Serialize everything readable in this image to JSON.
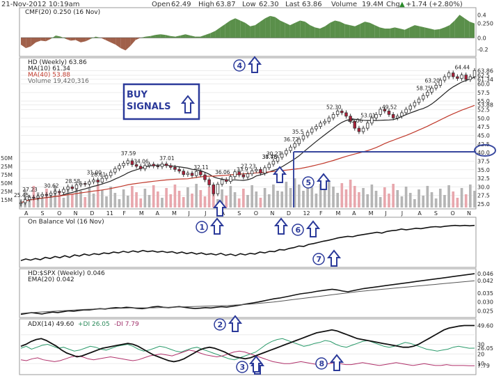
{
  "header": {
    "date": "21-Nov-2012 10:19am",
    "open_label": "Open",
    "open": "62.49",
    "high_label": "High",
    "high": "63.87",
    "low_label": "Low",
    "low": "62.30",
    "last_label": "Last",
    "last": "63.86",
    "volume_label": "Volume",
    "volume": "19.4M",
    "chg_label": "Chg",
    "chg": "+1.74 (+2.80%)",
    "chg_arrow": "▲"
  },
  "colors": {
    "up": "#ffffff",
    "down": "#b0203a",
    "ma10": "#222222",
    "ma40": "#c0392b",
    "cmf_pos": "#5a8f4a",
    "cmf_neg": "#a0604a",
    "annotation": "#2b3a9a",
    "volume_up": "#b5b5b5",
    "volume_down": "#e8a7ad"
  },
  "annotation": {
    "title_line1": "BUY",
    "title_line2": "SIGNALS",
    "markers": [
      "1",
      "2",
      "3",
      "4",
      "5",
      "6",
      "7",
      "8"
    ]
  },
  "x_axis_labels": [
    "A",
    "S",
    "O",
    "N",
    "D",
    "11",
    "F",
    "M",
    "A",
    "M",
    "J",
    "J",
    "A",
    "S",
    "O",
    "N",
    "D",
    "12",
    "F",
    "M",
    "A",
    "M",
    "J",
    "J",
    "A",
    "S",
    "O",
    "N"
  ],
  "chart_data": [
    {
      "panel": "cmf",
      "type": "area",
      "title": "CMF(20) 0.250 (16 Nov)",
      "ylim": [
        -0.3,
        0.5
      ],
      "y_ticks": [
        "0.4",
        "0.250",
        "0.0",
        "-0.2"
      ],
      "values": [
        -0.12,
        -0.18,
        -0.15,
        -0.08,
        -0.05,
        -0.06,
        -0.02,
        0.04,
        0.02,
        -0.02,
        -0.05,
        -0.04,
        -0.08,
        -0.06,
        -0.02,
        0.02,
        0.0,
        -0.04,
        -0.08,
        -0.12,
        -0.18,
        -0.22,
        -0.14,
        -0.04,
        0.0,
        0.02,
        0.03,
        0.05,
        0.06,
        0.05,
        0.03,
        0.02,
        0.04,
        0.06,
        0.04,
        0.02,
        0.02,
        0.05,
        0.08,
        0.12,
        0.18,
        0.24,
        0.3,
        0.34,
        0.3,
        0.26,
        0.2,
        0.22,
        0.28,
        0.34,
        0.38,
        0.36,
        0.3,
        0.26,
        0.22,
        0.26,
        0.3,
        0.28,
        0.22,
        0.18,
        0.16,
        0.2,
        0.26,
        0.3,
        0.28,
        0.24,
        0.22,
        0.2,
        0.24,
        0.28,
        0.26,
        0.22,
        0.18,
        0.16,
        0.16,
        0.18,
        0.16,
        0.14,
        0.18,
        0.22,
        0.2,
        0.18,
        0.16,
        0.14,
        0.15,
        0.18,
        0.22,
        0.3,
        0.4,
        0.34,
        0.28,
        0.25
      ]
    },
    {
      "panel": "price",
      "type": "candlestick",
      "title": "HD (Weekly) 63.86",
      "legend": [
        "MA(10) 61.34",
        "MA(40) 53.88",
        "Volume 19,420,316"
      ],
      "ylim": [
        24,
        67
      ],
      "y_ticks": [
        "63.86",
        "62.5",
        "61.34",
        "60.0",
        "57.5",
        "55.0",
        "53.88",
        "52.5",
        "50.0",
        "47.5",
        "45.0",
        "42.5",
        "40.0",
        "37.5",
        "35.0",
        "32.5",
        "30.0",
        "27.5",
        "25.0"
      ],
      "volume_ticks": [
        "50M",
        "25M",
        "75M",
        "50M",
        "25M",
        "15M"
      ],
      "close": [
        25.4,
        26.3,
        27.0,
        26.8,
        27.3,
        27.8,
        27.6,
        28.2,
        28.7,
        28.4,
        29.3,
        30.0,
        29.5,
        30.6,
        31.0,
        30.8,
        31.5,
        32.0,
        31.4,
        32.5,
        33.3,
        34.3,
        35.3,
        36.2,
        36.9,
        37.6,
        36.5,
        36.0,
        35.3,
        36.2,
        36.6,
        36.1,
        35.9,
        36.7,
        36.2,
        35.7,
        35.1,
        34.6,
        33.6,
        34.0,
        33.3,
        34.5,
        33.5,
        32.1,
        30.6,
        28.0,
        30.8,
        32.1,
        31.6,
        33.0,
        34.4,
        33.5,
        32.9,
        33.8,
        34.7,
        35.1,
        34.0,
        35.6,
        36.6,
        37.5,
        38.6,
        39.6,
        40.6,
        41.6,
        42.6,
        43.9,
        44.9,
        45.9,
        46.9,
        47.6,
        48.6,
        49.1,
        50.1,
        51.1,
        52.1,
        51.6,
        50.6,
        49.1,
        47.1,
        46.1,
        47.1,
        48.6,
        50.1,
        51.1,
        52.6,
        52.1,
        51.1,
        50.1,
        50.6,
        51.6,
        52.6,
        53.6,
        54.6,
        55.6,
        56.6,
        57.6,
        58.8,
        59.6,
        61.1,
        62.1,
        63.2,
        62.1,
        61.6,
        62.6,
        61.3,
        62.1,
        63.9
      ],
      "labels": [
        {
          "text": "25.45",
          "i": 0
        },
        {
          "text": "27.23",
          "i": 2
        },
        {
          "text": "30.62",
          "i": 7
        },
        {
          "text": "28.58",
          "i": 12
        },
        {
          "text": "28.61",
          "i": 18
        },
        {
          "text": "31.00",
          "i": 17
        },
        {
          "text": "37.59",
          "i": 25
        },
        {
          "text": "34.06",
          "i": 28
        },
        {
          "text": "37.01",
          "i": 34
        },
        {
          "text": "32.11",
          "i": 42
        },
        {
          "text": "36.06",
          "i": 47
        },
        {
          "text": "33.9",
          "i": 52
        },
        {
          "text": "27.23",
          "i": 53
        },
        {
          "text": "34.46",
          "i": 58
        },
        {
          "text": "30.27",
          "i": 59
        },
        {
          "text": "36.72",
          "i": 63
        },
        {
          "text": "35.5",
          "i": 65
        },
        {
          "text": "35.75",
          "i": 58
        },
        {
          "text": "52.30",
          "i": 73
        },
        {
          "text": "53.01",
          "i": 81
        },
        {
          "text": "45.06",
          "i": 78
        },
        {
          "text": "49.52",
          "i": 86
        },
        {
          "text": "58.75",
          "i": 94
        },
        {
          "text": "63.20",
          "i": 96
        },
        {
          "text": "64.44",
          "i": 103
        }
      ],
      "target_level": "40.0"
    },
    {
      "panel": "obv",
      "type": "line",
      "title": "On Balance Vol (16 Nov)",
      "values": [
        10,
        14,
        11,
        15,
        12,
        18,
        15,
        20,
        17,
        22,
        18,
        24,
        21,
        26,
        23,
        27,
        25,
        29,
        27,
        31,
        29,
        33,
        30,
        34,
        31,
        35,
        32,
        34,
        31,
        33,
        30,
        32,
        28,
        31,
        27,
        30,
        26,
        29,
        25,
        27,
        24,
        28,
        23,
        26,
        22,
        27,
        24,
        28,
        26,
        31,
        29,
        33,
        32,
        37,
        36,
        40,
        42,
        46,
        45,
        50,
        52,
        55,
        58,
        60,
        63,
        66,
        68,
        70,
        69,
        72,
        74,
        76,
        78,
        80,
        78,
        82,
        84,
        85,
        88,
        86,
        88,
        90,
        89,
        91,
        93,
        94,
        93,
        95,
        96,
        97,
        96,
        97,
        96,
        97
      ]
    },
    {
      "panel": "relative",
      "type": "line",
      "title": "HD:$SPX (Weekly) 0.046",
      "legend": [
        "EMA(20) 0.042"
      ],
      "y_ticks": [
        "0.046",
        "0.042",
        "0.035",
        "0.030",
        "0.025"
      ],
      "values": [
        0.023,
        0.0235,
        0.024,
        0.0236,
        0.0232,
        0.0238,
        0.0243,
        0.024,
        0.0245,
        0.025,
        0.0248,
        0.0252,
        0.0256,
        0.0255,
        0.0259,
        0.0262,
        0.026,
        0.0265,
        0.0268,
        0.0266,
        0.027,
        0.0268,
        0.0264,
        0.0262,
        0.0266,
        0.0272,
        0.0275,
        0.027,
        0.0268,
        0.0271,
        0.0274,
        0.027,
        0.0266,
        0.0263,
        0.0265,
        0.0268,
        0.0266,
        0.027,
        0.0273,
        0.0271,
        0.0275,
        0.028,
        0.0285,
        0.029,
        0.0295,
        0.03,
        0.0306,
        0.0312,
        0.0318,
        0.0322,
        0.0328,
        0.0334,
        0.034,
        0.0346,
        0.035,
        0.0354,
        0.036,
        0.0364,
        0.0368,
        0.0372,
        0.0368,
        0.0362,
        0.0358,
        0.0364,
        0.037,
        0.0376,
        0.038,
        0.0384,
        0.0388,
        0.0392,
        0.0396,
        0.04,
        0.0404,
        0.0408,
        0.0412,
        0.0416,
        0.042,
        0.0424,
        0.0428,
        0.0432,
        0.0436,
        0.044,
        0.0444,
        0.0448,
        0.0452,
        0.0456,
        0.046
      ],
      "ema": [
        0.0235,
        0.0238,
        0.024,
        0.0242,
        0.0244,
        0.0246,
        0.0248,
        0.025,
        0.0252,
        0.0254,
        0.0256,
        0.0258,
        0.0259,
        0.026,
        0.0261,
        0.0262,
        0.0263,
        0.0264,
        0.0265,
        0.0266,
        0.0267,
        0.0267,
        0.0267,
        0.0267,
        0.0268,
        0.0269,
        0.027,
        0.0271,
        0.0272,
        0.0273,
        0.0274,
        0.0275,
        0.0276,
        0.0277,
        0.0278,
        0.0279,
        0.028,
        0.0282,
        0.0284,
        0.0286,
        0.0288,
        0.0291,
        0.0294,
        0.0297,
        0.03,
        0.0304,
        0.0308,
        0.0312,
        0.0316,
        0.032,
        0.0324,
        0.0328,
        0.0332,
        0.0336,
        0.034,
        0.0344,
        0.0348,
        0.0352,
        0.0356,
        0.036,
        0.0363,
        0.0366,
        0.0369,
        0.0372,
        0.0375,
        0.0378,
        0.0381,
        0.0384,
        0.0387,
        0.039,
        0.0393,
        0.0396,
        0.0399,
        0.0402,
        0.0405,
        0.0408,
        0.0411,
        0.0414,
        0.0417,
        0.042
      ]
    },
    {
      "panel": "adx",
      "type": "line",
      "title": "ADX(14) 49.60",
      "legend": [
        "+DI 26.05",
        "-DI 7.79"
      ],
      "y_ticks": [
        "49.60",
        "30",
        "26.05",
        "20",
        "10",
        "7.79"
      ],
      "adx": [
        28,
        30,
        33,
        35,
        36,
        34,
        31,
        28,
        24,
        21,
        19,
        17,
        18,
        20,
        22,
        24,
        26,
        27,
        28,
        29,
        30,
        31,
        30,
        28,
        25,
        22,
        19,
        17,
        15,
        13,
        12,
        13,
        15,
        18,
        21,
        24,
        26,
        27,
        26,
        24,
        22,
        19,
        17,
        16,
        15,
        16,
        18,
        20,
        22,
        24,
        26,
        28,
        30,
        32,
        34,
        36,
        38,
        40,
        42,
        43,
        44,
        45,
        44,
        42,
        40,
        38,
        36,
        35,
        34,
        33,
        32,
        31,
        30,
        29,
        28,
        27,
        27,
        28,
        30,
        33,
        36,
        39,
        42,
        45,
        47,
        48,
        49,
        49.6,
        49.6,
        49.6
      ],
      "plus_di": [
        26,
        28,
        25,
        27,
        29,
        30,
        28,
        26,
        27,
        25,
        23,
        24,
        26,
        28,
        27,
        25,
        24,
        26,
        28,
        29,
        30,
        28,
        25,
        23,
        24,
        26,
        28,
        27,
        25,
        23,
        22,
        24,
        26,
        27,
        25,
        23,
        21,
        19,
        17,
        15,
        14,
        16,
        18,
        20,
        22,
        26,
        30,
        33,
        35,
        36,
        34,
        32,
        30,
        28,
        29,
        31,
        32,
        34,
        33,
        30,
        28,
        27,
        29,
        31,
        33,
        34,
        32,
        30,
        28,
        27,
        28,
        30,
        32,
        31,
        29,
        27,
        25,
        24,
        23,
        24,
        25,
        27,
        28,
        27,
        26,
        26.05
      ],
      "minus_di": [
        14,
        13,
        15,
        16,
        14,
        13,
        12,
        13,
        15,
        17,
        18,
        17,
        15,
        14,
        15,
        16,
        17,
        16,
        15,
        14,
        13,
        14,
        16,
        18,
        19,
        20,
        19,
        18,
        20,
        22,
        24,
        23,
        21,
        19,
        18,
        17,
        18,
        20,
        22,
        23,
        22,
        20,
        18,
        16,
        14,
        12,
        11,
        10,
        10,
        11,
        12,
        11,
        10,
        9,
        9,
        10,
        11,
        10,
        9,
        9,
        10,
        11,
        10,
        9,
        8,
        9,
        10,
        11,
        10,
        9,
        8,
        9,
        10,
        9,
        8,
        8,
        9,
        8,
        8,
        8,
        7.8,
        7.79
      ]
    }
  ]
}
